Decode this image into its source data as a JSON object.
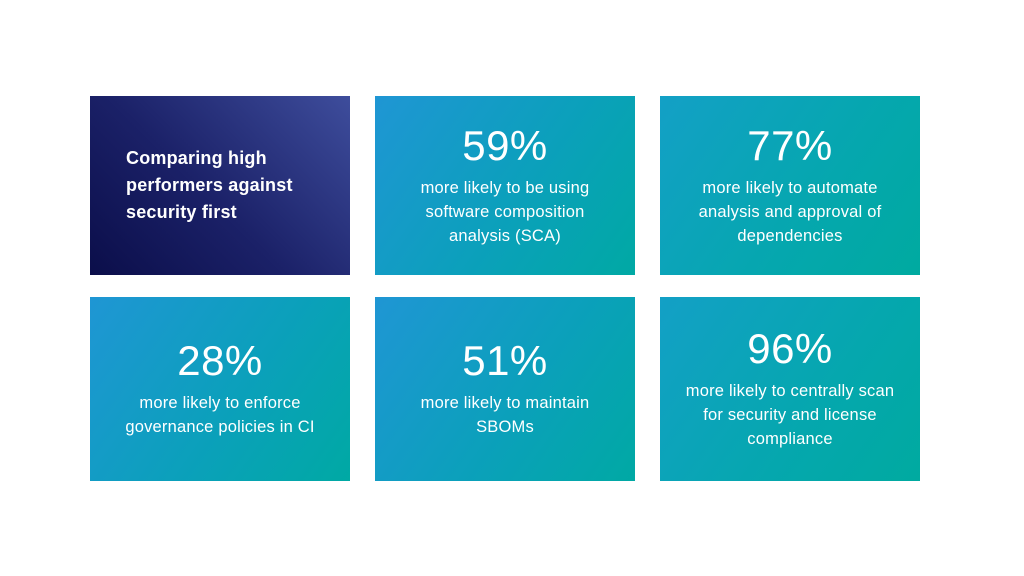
{
  "slide": {
    "background_color": "#ffffff",
    "intro_card": {
      "text": "Comparing high performers against security first",
      "gradient_start": "#0b0e4a",
      "gradient_end": "#3e4d9c",
      "text_color": "#ffffff"
    },
    "stat_card_style": {
      "gradient_start": "#1f96d4",
      "gradient_end": "#00a9a4",
      "text_color": "#ffffff"
    },
    "stat_cards": [
      {
        "value": "59%",
        "label": "more likely to be using software composition analysis (SCA)"
      },
      {
        "value": "77%",
        "label": "more likely to automate analysis and approval of dependencies"
      },
      {
        "value": "28%",
        "label": "more likely to enforce governance policies in CI"
      },
      {
        "value": "51%",
        "label": "more likely to maintain SBOMs"
      },
      {
        "value": "96%",
        "label": "more likely to centrally scan for security and license compliance"
      }
    ]
  },
  "chart_data": {
    "type": "table",
    "title": "Comparing high performers against security first",
    "unit": "%",
    "categories": [
      "more likely to be using software composition analysis (SCA)",
      "more likely to automate analysis and approval of dependencies",
      "more likely to enforce governance policies in CI",
      "more likely to maintain SBOMs",
      "more likely to centrally scan for security and license compliance"
    ],
    "values": [
      59,
      77,
      28,
      51,
      96
    ],
    "layout": "3x2 grid of stat cards, first cell is title card",
    "legend": "none",
    "grid": "off"
  }
}
